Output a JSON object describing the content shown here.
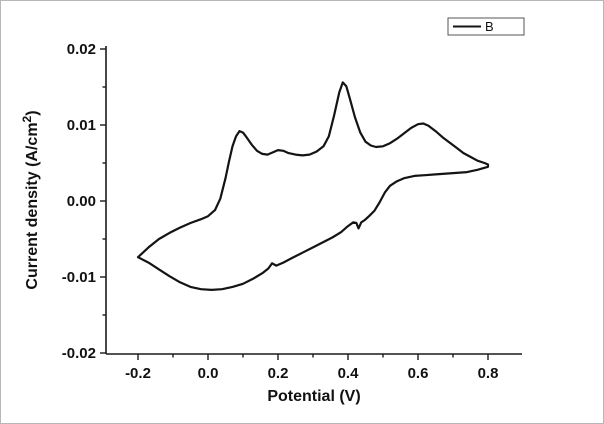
{
  "figure": {
    "background": "#ffffff",
    "line_color": "#141414",
    "axis_color": "#1a1a1a"
  },
  "chart_data": {
    "type": "line",
    "title": "",
    "xlabel": "Potential (V)",
    "ylabel": "Current density (A/cm²)",
    "ylabel_parts": {
      "pre": "Current density (A/cm",
      "sup": "2",
      "post": ")"
    },
    "xlim": [
      -0.2,
      0.8
    ],
    "ylim": [
      -0.02,
      0.02
    ],
    "x_ticks": [
      -0.2,
      0.0,
      0.2,
      0.4,
      0.6,
      0.8
    ],
    "x_tick_labels": [
      "-0.2",
      "0.0",
      "0.2",
      "0.4",
      "0.6",
      "0.8"
    ],
    "x_minor_ticks": [
      -0.1,
      0.1,
      0.3,
      0.5,
      0.7
    ],
    "y_ticks": [
      -0.02,
      -0.01,
      0.0,
      0.01,
      0.02
    ],
    "y_tick_labels": [
      "-0.02",
      "-0.01",
      "0.00",
      "0.01",
      "0.02"
    ],
    "y_minor_ticks": [
      -0.015,
      -0.005,
      0.005,
      0.015
    ],
    "grid": false,
    "legend": {
      "position": "top-right",
      "entries": [
        {
          "label": "B",
          "color": "#141414"
        }
      ]
    },
    "series": [
      {
        "name": "B",
        "color": "#141414",
        "description": "cyclic voltammetry loop: anodic sweep then cathodic return",
        "points": [
          [
            -0.2,
            -0.0074
          ],
          [
            -0.17,
            -0.0061
          ],
          [
            -0.14,
            -0.005
          ],
          [
            -0.11,
            -0.0042
          ],
          [
            -0.08,
            -0.0035
          ],
          [
            -0.05,
            -0.0029
          ],
          [
            -0.02,
            -0.0024
          ],
          [
            0.0,
            -0.002
          ],
          [
            0.02,
            -0.0012
          ],
          [
            0.035,
            0.0003
          ],
          [
            0.05,
            0.003
          ],
          [
            0.06,
            0.0052
          ],
          [
            0.07,
            0.0072
          ],
          [
            0.08,
            0.0085
          ],
          [
            0.09,
            0.0092
          ],
          [
            0.1,
            0.009
          ],
          [
            0.11,
            0.0084
          ],
          [
            0.125,
            0.0074
          ],
          [
            0.14,
            0.0066
          ],
          [
            0.155,
            0.0062
          ],
          [
            0.17,
            0.0061
          ],
          [
            0.185,
            0.0064
          ],
          [
            0.2,
            0.0067
          ],
          [
            0.215,
            0.0066
          ],
          [
            0.23,
            0.0063
          ],
          [
            0.25,
            0.0061
          ],
          [
            0.27,
            0.006
          ],
          [
            0.29,
            0.0061
          ],
          [
            0.31,
            0.0065
          ],
          [
            0.33,
            0.0072
          ],
          [
            0.345,
            0.0085
          ],
          [
            0.36,
            0.0112
          ],
          [
            0.375,
            0.0143
          ],
          [
            0.385,
            0.0156
          ],
          [
            0.395,
            0.0151
          ],
          [
            0.405,
            0.0135
          ],
          [
            0.42,
            0.011
          ],
          [
            0.435,
            0.009
          ],
          [
            0.45,
            0.0078
          ],
          [
            0.465,
            0.0073
          ],
          [
            0.48,
            0.0071
          ],
          [
            0.5,
            0.0072
          ],
          [
            0.52,
            0.0076
          ],
          [
            0.54,
            0.0082
          ],
          [
            0.56,
            0.0089
          ],
          [
            0.58,
            0.0096
          ],
          [
            0.6,
            0.0101
          ],
          [
            0.615,
            0.0102
          ],
          [
            0.63,
            0.0099
          ],
          [
            0.65,
            0.0092
          ],
          [
            0.67,
            0.0084
          ],
          [
            0.69,
            0.0077
          ],
          [
            0.71,
            0.007
          ],
          [
            0.73,
            0.0063
          ],
          [
            0.75,
            0.0058
          ],
          [
            0.77,
            0.0053
          ],
          [
            0.79,
            0.005
          ],
          [
            0.8,
            0.0048
          ],
          [
            0.8,
            0.0045
          ],
          [
            0.77,
            0.0041
          ],
          [
            0.74,
            0.0038
          ],
          [
            0.71,
            0.0037
          ],
          [
            0.68,
            0.0036
          ],
          [
            0.65,
            0.0035
          ],
          [
            0.62,
            0.0034
          ],
          [
            0.59,
            0.0033
          ],
          [
            0.56,
            0.003
          ],
          [
            0.54,
            0.0026
          ],
          [
            0.52,
            0.002
          ],
          [
            0.505,
            0.0011
          ],
          [
            0.49,
            -0.0002
          ],
          [
            0.475,
            -0.0013
          ],
          [
            0.46,
            -0.002
          ],
          [
            0.448,
            -0.0025
          ],
          [
            0.438,
            -0.0028
          ],
          [
            0.43,
            -0.0036
          ],
          [
            0.424,
            -0.0029
          ],
          [
            0.415,
            -0.0028
          ],
          [
            0.4,
            -0.0033
          ],
          [
            0.38,
            -0.0041
          ],
          [
            0.355,
            -0.0048
          ],
          [
            0.33,
            -0.0054
          ],
          [
            0.3,
            -0.0061
          ],
          [
            0.27,
            -0.0068
          ],
          [
            0.24,
            -0.0075
          ],
          [
            0.215,
            -0.0081
          ],
          [
            0.195,
            -0.0085
          ],
          [
            0.183,
            -0.0082
          ],
          [
            0.172,
            -0.0089
          ],
          [
            0.155,
            -0.0095
          ],
          [
            0.13,
            -0.0102
          ],
          [
            0.1,
            -0.0109
          ],
          [
            0.07,
            -0.0113
          ],
          [
            0.04,
            -0.0116
          ],
          [
            0.01,
            -0.0117
          ],
          [
            -0.02,
            -0.0116
          ],
          [
            -0.05,
            -0.0113
          ],
          [
            -0.08,
            -0.0107
          ],
          [
            -0.11,
            -0.0099
          ],
          [
            -0.14,
            -0.009
          ],
          [
            -0.17,
            -0.0081
          ],
          [
            -0.2,
            -0.0074
          ]
        ]
      }
    ]
  }
}
